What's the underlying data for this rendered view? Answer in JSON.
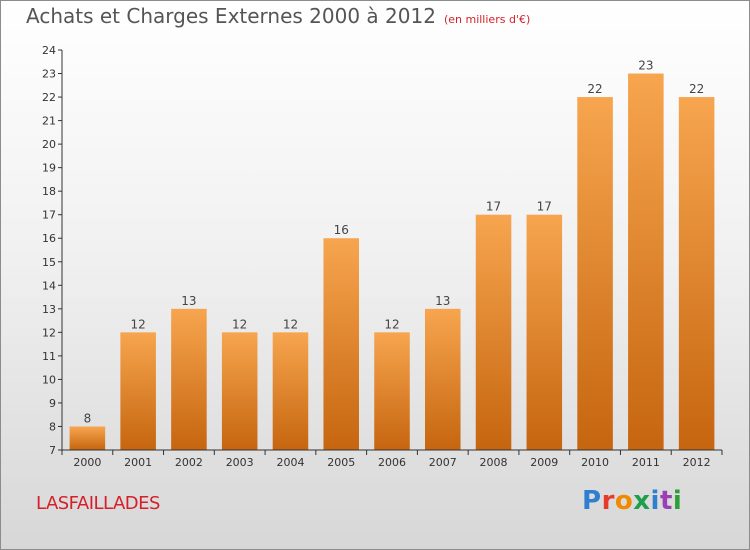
{
  "header": {
    "title": "Achats et Charges Externes 2000 à 2012",
    "subtitle": "(en milliers d'€)"
  },
  "footer": {
    "location": "LASFAILLADES",
    "logo": "Proxiti",
    "logo_colors": [
      "#2f7fd0",
      "#e43b2c",
      "#f08a00",
      "#1e9f4c",
      "#2f7fd0",
      "#9b3fb5",
      "#2f9e3a"
    ]
  },
  "colors": {
    "bar_light": "#f7a54f",
    "bar_dark": "#c6650f",
    "axis": "#333333"
  },
  "chart_data": {
    "type": "bar",
    "title": "Achats et Charges Externes 2000 à 2012",
    "subtitle": "(en milliers d'€)",
    "categories": [
      "2000",
      "2001",
      "2002",
      "2003",
      "2004",
      "2005",
      "2006",
      "2007",
      "2008",
      "2009",
      "2010",
      "2011",
      "2012"
    ],
    "values": [
      8,
      12,
      13,
      12,
      12,
      16,
      12,
      13,
      17,
      17,
      22,
      23,
      22
    ],
    "ylim": [
      7,
      24
    ],
    "yticks": [
      7,
      8,
      9,
      10,
      11,
      12,
      13,
      14,
      15,
      16,
      17,
      18,
      19,
      20,
      21,
      22,
      23,
      24
    ],
    "xlabel": "",
    "ylabel": "",
    "grid": false,
    "legend": "none"
  }
}
